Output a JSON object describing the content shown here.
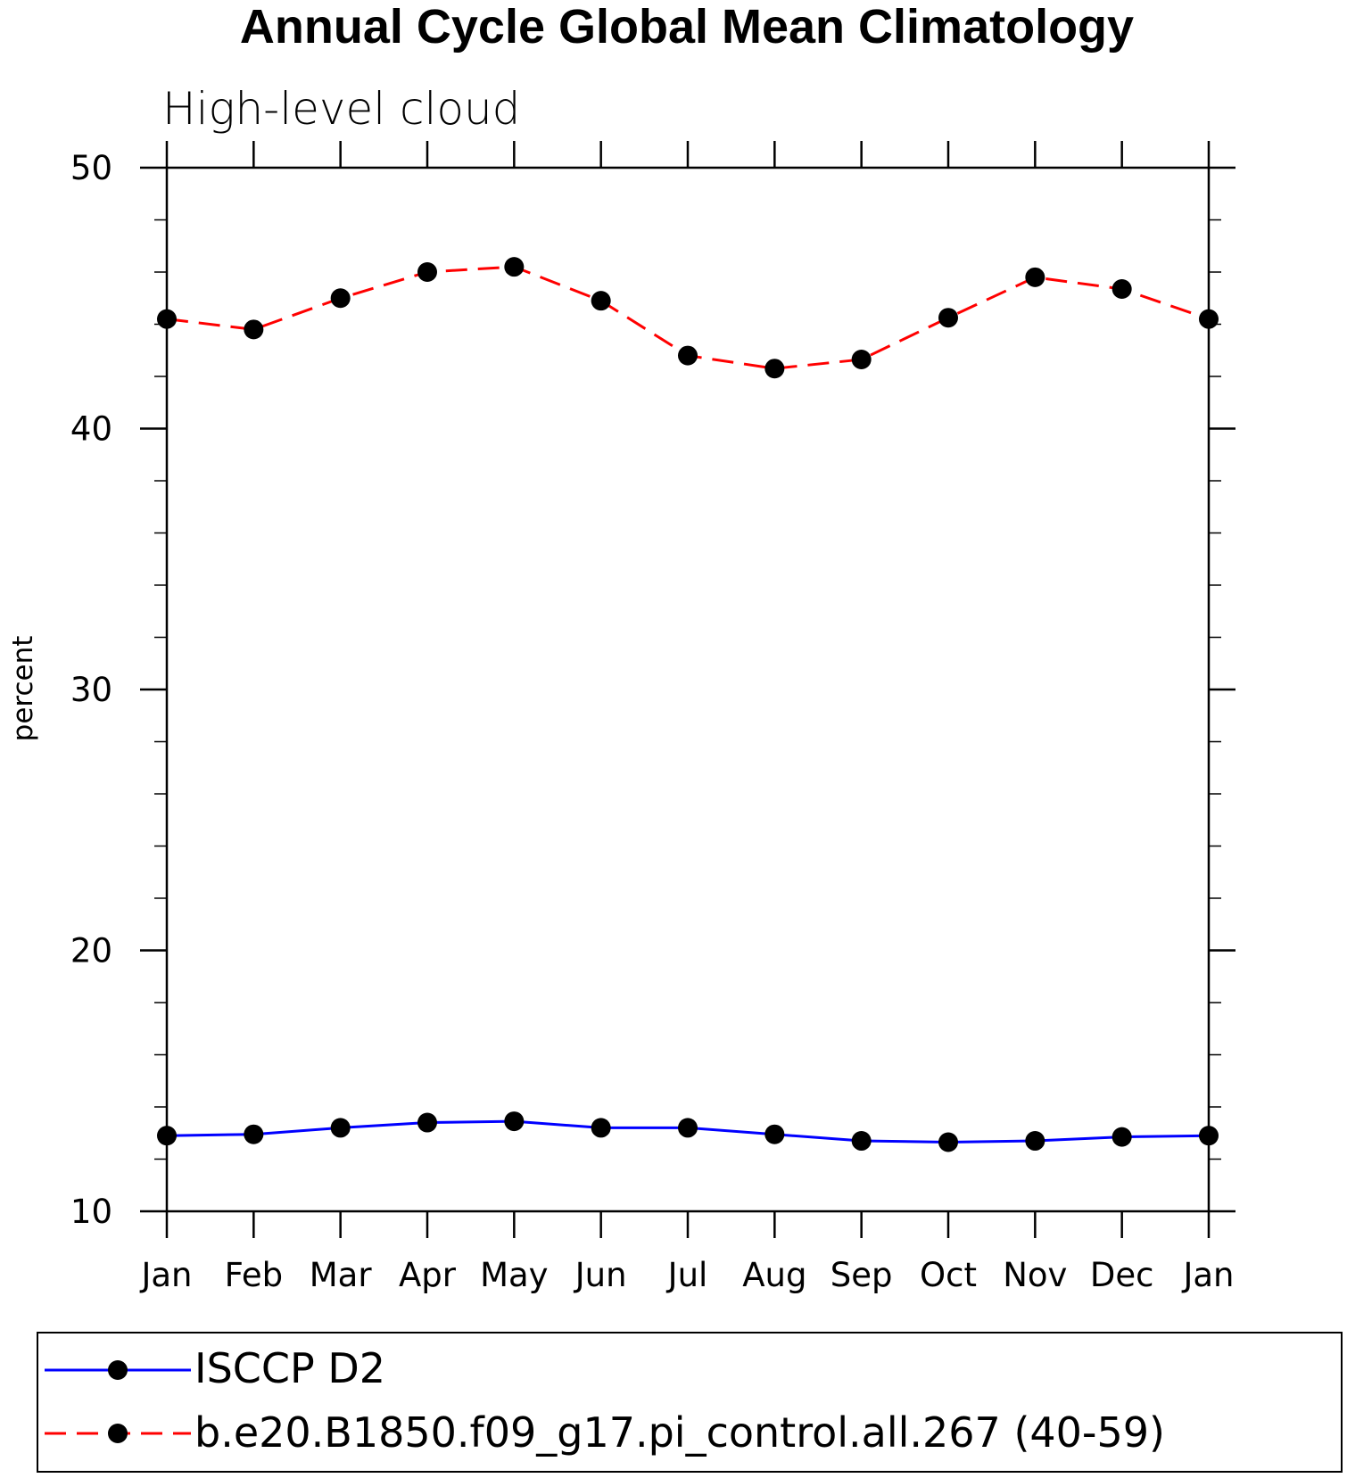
{
  "chart_data": {
    "type": "line",
    "title": "Annual Cycle Global Mean Climatology",
    "subtitle": "High-level cloud",
    "xlabel": "",
    "ylabel": "percent",
    "categories": [
      "Jan",
      "Feb",
      "Mar",
      "Apr",
      "May",
      "Jun",
      "Jul",
      "Aug",
      "Sep",
      "Oct",
      "Nov",
      "Dec",
      "Jan"
    ],
    "ylim": [
      10,
      50
    ],
    "yticks": [
      "10",
      "20",
      "30",
      "40",
      "50"
    ],
    "grid": false,
    "legend_position": "bottom",
    "series": [
      {
        "name": "ISCCP D2",
        "color": "#0000ff",
        "line_style": "solid",
        "marker": "circle",
        "values": [
          12.9,
          12.95,
          13.2,
          13.4,
          13.45,
          13.2,
          13.2,
          12.95,
          12.7,
          12.65,
          12.7,
          12.85,
          12.9
        ]
      },
      {
        "name": "b.e20.B1850.f09_g17.pi_control.all.267 (40-59)",
        "color": "#ff0000",
        "line_style": "dashed",
        "marker": "circle",
        "values": [
          44.2,
          43.8,
          45.0,
          46.0,
          46.2,
          44.9,
          42.8,
          42.3,
          42.65,
          44.25,
          45.8,
          45.35,
          44.2
        ]
      }
    ]
  }
}
